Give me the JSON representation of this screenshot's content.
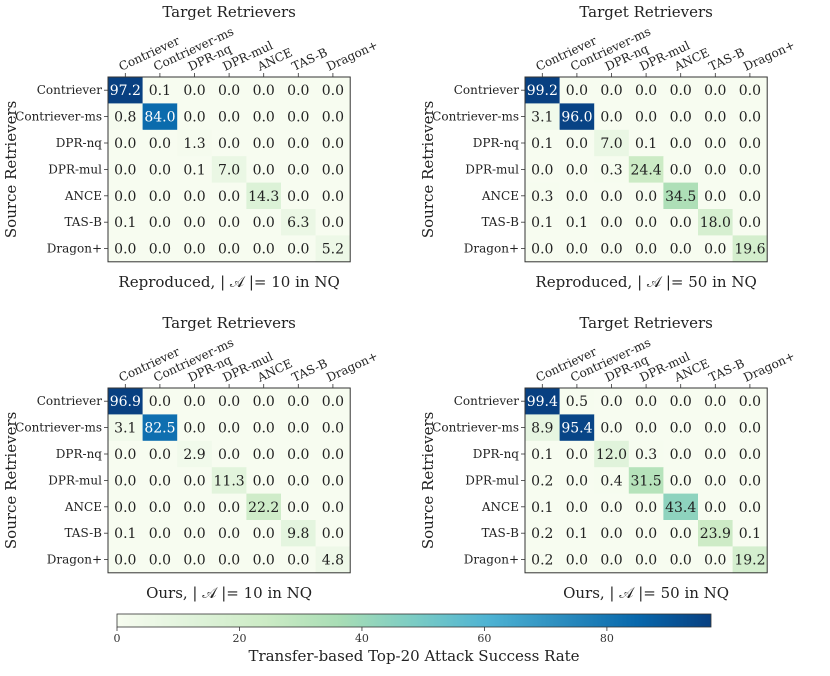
{
  "chart_data": [
    {
      "type": "heatmap",
      "panel": "top-left",
      "col_title": "Target Retrievers",
      "row_title": "Source Retrievers",
      "caption": "Reproduced, | 𝒜 |= 10 in NQ",
      "rows": [
        "Contriever",
        "Contriever-ms",
        "DPR-nq",
        "DPR-mul",
        "ANCE",
        "TAS-B",
        "Dragon+"
      ],
      "cols": [
        "Contriever",
        "Contriever-ms",
        "DPR-nq",
        "DPR-mul",
        "ANCE",
        "TAS-B",
        "Dragon+"
      ],
      "values": [
        [
          97.2,
          0.1,
          0.0,
          0.0,
          0.0,
          0.0,
          0.0
        ],
        [
          0.8,
          84.0,
          0.0,
          0.0,
          0.0,
          0.0,
          0.0
        ],
        [
          0.0,
          0.0,
          1.3,
          0.0,
          0.0,
          0.0,
          0.0
        ],
        [
          0.0,
          0.0,
          0.1,
          7.0,
          0.0,
          0.0,
          0.0
        ],
        [
          0.0,
          0.0,
          0.0,
          0.0,
          14.3,
          0.0,
          0.0
        ],
        [
          0.1,
          0.0,
          0.0,
          0.0,
          0.0,
          6.3,
          0.0
        ],
        [
          0.0,
          0.0,
          0.0,
          0.0,
          0.0,
          0.0,
          5.2
        ]
      ]
    },
    {
      "type": "heatmap",
      "panel": "top-right",
      "col_title": "Target Retrievers",
      "row_title": "Source Retrievers",
      "caption": "Reproduced, | 𝒜 |= 50 in NQ",
      "rows": [
        "Contriever",
        "Contriever-ms",
        "DPR-nq",
        "DPR-mul",
        "ANCE",
        "TAS-B",
        "Dragon+"
      ],
      "cols": [
        "Contriever",
        "Contriever-ms",
        "DPR-nq",
        "DPR-mul",
        "ANCE",
        "TAS-B",
        "Dragon+"
      ],
      "values": [
        [
          99.2,
          0.0,
          0.0,
          0.0,
          0.0,
          0.0,
          0.0
        ],
        [
          3.1,
          96.0,
          0.0,
          0.0,
          0.0,
          0.0,
          0.0
        ],
        [
          0.1,
          0.0,
          7.0,
          0.1,
          0.0,
          0.0,
          0.0
        ],
        [
          0.0,
          0.0,
          0.3,
          24.4,
          0.0,
          0.0,
          0.0
        ],
        [
          0.3,
          0.0,
          0.0,
          0.0,
          34.5,
          0.0,
          0.0
        ],
        [
          0.1,
          0.1,
          0.0,
          0.0,
          0.0,
          18.0,
          0.0
        ],
        [
          0.0,
          0.0,
          0.0,
          0.0,
          0.0,
          0.0,
          19.6
        ]
      ]
    },
    {
      "type": "heatmap",
      "panel": "bottom-left",
      "col_title": "Target Retrievers",
      "row_title": "Source Retrievers",
      "caption": "Ours, | 𝒜 |= 10 in NQ",
      "rows": [
        "Contriever",
        "Contriever-ms",
        "DPR-nq",
        "DPR-mul",
        "ANCE",
        "TAS-B",
        "Dragon+"
      ],
      "cols": [
        "Contriever",
        "Contriever-ms",
        "DPR-nq",
        "DPR-mul",
        "ANCE",
        "TAS-B",
        "Dragon+"
      ],
      "values": [
        [
          96.9,
          0.0,
          0.0,
          0.0,
          0.0,
          0.0,
          0.0
        ],
        [
          3.1,
          82.5,
          0.0,
          0.0,
          0.0,
          0.0,
          0.0
        ],
        [
          0.0,
          0.0,
          2.9,
          0.0,
          0.0,
          0.0,
          0.0
        ],
        [
          0.0,
          0.0,
          0.0,
          11.3,
          0.0,
          0.0,
          0.0
        ],
        [
          0.0,
          0.0,
          0.0,
          0.0,
          22.2,
          0.0,
          0.0
        ],
        [
          0.1,
          0.0,
          0.0,
          0.0,
          0.0,
          9.8,
          0.0
        ],
        [
          0.0,
          0.0,
          0.0,
          0.0,
          0.0,
          0.0,
          4.8
        ]
      ]
    },
    {
      "type": "heatmap",
      "panel": "bottom-right",
      "col_title": "Target Retrievers",
      "row_title": "Source Retrievers",
      "caption": "Ours, | 𝒜 |= 50 in NQ",
      "rows": [
        "Contriever",
        "Contriever-ms",
        "DPR-nq",
        "DPR-mul",
        "ANCE",
        "TAS-B",
        "Dragon+"
      ],
      "cols": [
        "Contriever",
        "Contriever-ms",
        "DPR-nq",
        "DPR-mul",
        "ANCE",
        "TAS-B",
        "Dragon+"
      ],
      "values": [
        [
          99.4,
          0.5,
          0.0,
          0.0,
          0.0,
          0.0,
          0.0
        ],
        [
          8.9,
          95.4,
          0.0,
          0.0,
          0.0,
          0.0,
          0.0
        ],
        [
          0.1,
          0.0,
          12.0,
          0.3,
          0.0,
          0.0,
          0.0
        ],
        [
          0.2,
          0.0,
          0.4,
          31.5,
          0.0,
          0.0,
          0.0
        ],
        [
          0.1,
          0.0,
          0.0,
          0.0,
          43.4,
          0.0,
          0.0
        ],
        [
          0.2,
          0.1,
          0.0,
          0.0,
          0.0,
          23.9,
          0.1
        ],
        [
          0.2,
          0.0,
          0.0,
          0.0,
          0.0,
          0.0,
          19.2
        ]
      ]
    }
  ],
  "colorbar": {
    "label": "Transfer-based Top-20 Attack Success Rate",
    "range": [
      0,
      97
    ],
    "ticks": [
      0,
      20,
      40,
      60,
      80
    ],
    "colormap": "GnBu",
    "stops": [
      "#f7fcf0",
      "#e0f3db",
      "#ccebc5",
      "#a8ddb5",
      "#7bccc4",
      "#4eb3d3",
      "#2b8cbe",
      "#0868ac",
      "#084081"
    ]
  }
}
